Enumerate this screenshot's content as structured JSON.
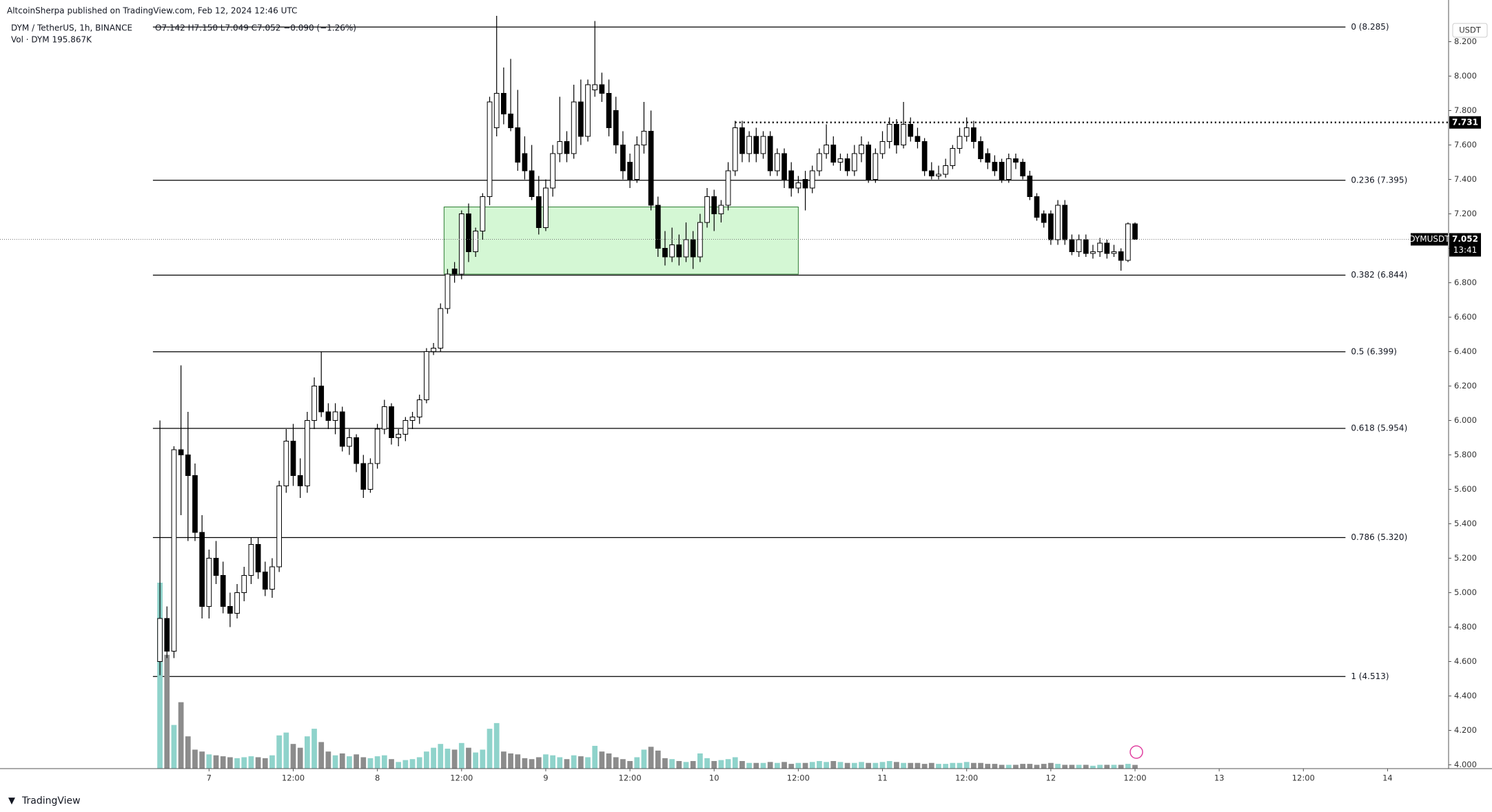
{
  "chart_data": {
    "type": "candlestick",
    "published": "AltcoinSherpa published on TradingView.com, Feb 12, 2024 12:46 UTC",
    "symbol": "DYM / TetherUS, 1h, BINANCE",
    "ohlc_text": "O7.142 H7.150 L7.049 C7.052 −0.090 (−1.26%)",
    "volume_text": "Vol · DYM  195.867K",
    "currency": "USDT",
    "ticker": "DYMUSDT",
    "countdown": "13:41",
    "footer": "TradingView",
    "up_color": "#ffffff",
    "down_color": "#000000",
    "up_volume_color": "#8fd3cb",
    "down_volume_color": "#8c8c8c",
    "zone_color": "#d4f7d4",
    "ylim": [
      3.978,
      8.442
    ],
    "xlim": [
      -22.8,
      183.7
    ],
    "yticks": [
      {
        "value": 4.0,
        "label": "4.000"
      },
      {
        "value": 4.2,
        "label": "4.200"
      },
      {
        "value": 4.4,
        "label": "4.400"
      },
      {
        "value": 4.6,
        "label": "4.600"
      },
      {
        "value": 4.8,
        "label": "4.800"
      },
      {
        "value": 5.0,
        "label": "5.000"
      },
      {
        "value": 5.2,
        "label": "5.200"
      },
      {
        "value": 5.4,
        "label": "5.400"
      },
      {
        "value": 5.6,
        "label": "5.600"
      },
      {
        "value": 5.8,
        "label": "5.800"
      },
      {
        "value": 6.0,
        "label": "6.000"
      },
      {
        "value": 6.2,
        "label": "6.200"
      },
      {
        "value": 6.4,
        "label": "6.400"
      },
      {
        "value": 6.6,
        "label": "6.600"
      },
      {
        "value": 6.8,
        "label": "6.800"
      },
      {
        "value": 7.0,
        "label": "7.000"
      },
      {
        "value": 7.2,
        "label": "7.200"
      },
      {
        "value": 7.4,
        "label": "7.400"
      },
      {
        "value": 7.6,
        "label": "7.600"
      },
      {
        "value": 7.8,
        "label": "7.800"
      },
      {
        "value": 8.0,
        "label": "8.000"
      },
      {
        "value": 8.2,
        "label": "8.200"
      }
    ],
    "xticks": [
      {
        "value": 7,
        "label": "7"
      },
      {
        "value": 19,
        "label": "12:00"
      },
      {
        "value": 31,
        "label": "8"
      },
      {
        "value": 43,
        "label": "12:00"
      },
      {
        "value": 55,
        "label": "9"
      },
      {
        "value": 67,
        "label": "12:00"
      },
      {
        "value": 79,
        "label": "10"
      },
      {
        "value": 91,
        "label": "12:00"
      },
      {
        "value": 103,
        "label": "11"
      },
      {
        "value": 115,
        "label": "12:00"
      },
      {
        "value": 127,
        "label": "12"
      },
      {
        "value": 139,
        "label": "12:00"
      },
      {
        "value": 151,
        "label": "13"
      },
      {
        "value": 163,
        "label": "12:00"
      },
      {
        "value": 175,
        "label": "14"
      }
    ],
    "fib_levels": [
      {
        "value": 8.285,
        "label": "0 (8.285)"
      },
      {
        "value": 7.395,
        "label": "0.236 (7.395)"
      },
      {
        "value": 6.844,
        "label": "0.382 (6.844)"
      },
      {
        "value": 6.399,
        "label": "0.5 (6.399)"
      },
      {
        "value": 5.954,
        "label": "0.618 (5.954)"
      },
      {
        "value": 5.32,
        "label": "0.786 (5.320)"
      },
      {
        "value": 4.513,
        "label": "1 (4.513)"
      }
    ],
    "resistance": 7.731,
    "zone": {
      "top": 7.24,
      "bottom": 6.85,
      "start": 40.5,
      "end": 91
    },
    "candles": [
      [
        4.6,
        6.0,
        4.52,
        4.85
      ],
      [
        4.85,
        4.92,
        4.62,
        4.66
      ],
      [
        4.66,
        5.85,
        4.62,
        5.83
      ],
      [
        5.83,
        6.32,
        5.45,
        5.8
      ],
      [
        5.8,
        6.05,
        5.3,
        5.68
      ],
      [
        5.68,
        5.75,
        5.3,
        5.35
      ],
      [
        5.35,
        5.45,
        4.85,
        4.92
      ],
      [
        4.92,
        5.25,
        4.85,
        5.2
      ],
      [
        5.2,
        5.3,
        5.05,
        5.1
      ],
      [
        5.1,
        5.18,
        4.88,
        4.92
      ],
      [
        4.92,
        5.0,
        4.8,
        4.88
      ],
      [
        4.88,
        5.05,
        4.85,
        5.0
      ],
      [
        5.0,
        5.15,
        4.95,
        5.1
      ],
      [
        5.1,
        5.32,
        5.05,
        5.28
      ],
      [
        5.28,
        5.32,
        5.08,
        5.12
      ],
      [
        5.12,
        5.18,
        4.98,
        5.02
      ],
      [
        5.02,
        5.2,
        4.97,
        5.15
      ],
      [
        5.15,
        5.65,
        5.12,
        5.62
      ],
      [
        5.62,
        5.95,
        5.58,
        5.88
      ],
      [
        5.88,
        5.98,
        5.62,
        5.68
      ],
      [
        5.68,
        5.78,
        5.55,
        5.62
      ],
      [
        5.62,
        6.05,
        5.58,
        6.0
      ],
      [
        6.0,
        6.25,
        5.95,
        6.2
      ],
      [
        6.2,
        6.4,
        6.02,
        6.05
      ],
      [
        6.05,
        6.1,
        5.95,
        6.0
      ],
      [
        6.0,
        6.1,
        5.92,
        6.05
      ],
      [
        6.05,
        6.08,
        5.82,
        5.85
      ],
      [
        5.85,
        5.95,
        5.8,
        5.9
      ],
      [
        5.9,
        5.92,
        5.7,
        5.75
      ],
      [
        5.75,
        5.8,
        5.55,
        5.6
      ],
      [
        5.6,
        5.78,
        5.58,
        5.75
      ],
      [
        5.75,
        5.98,
        5.72,
        5.95
      ],
      [
        5.95,
        6.12,
        5.92,
        6.08
      ],
      [
        6.08,
        6.1,
        5.86,
        5.9
      ],
      [
        5.9,
        5.95,
        5.85,
        5.92
      ],
      [
        5.92,
        6.02,
        5.88,
        6.0
      ],
      [
        6.0,
        6.05,
        5.95,
        6.02
      ],
      [
        6.02,
        6.15,
        5.98,
        6.12
      ],
      [
        6.12,
        6.42,
        6.1,
        6.4
      ],
      [
        6.4,
        6.45,
        6.38,
        6.42
      ],
      [
        6.42,
        6.68,
        6.4,
        6.65
      ],
      [
        6.65,
        6.88,
        6.62,
        6.85
      ],
      [
        6.88,
        6.92,
        6.8,
        6.85
      ],
      [
        6.85,
        7.22,
        6.82,
        7.2
      ],
      [
        7.2,
        7.26,
        6.92,
        6.98
      ],
      [
        6.98,
        7.12,
        6.95,
        7.1
      ],
      [
        7.1,
        7.32,
        7.05,
        7.3
      ],
      [
        7.3,
        7.88,
        7.25,
        7.85
      ],
      [
        7.7,
        8.35,
        7.65,
        7.9
      ],
      [
        7.9,
        8.05,
        7.72,
        7.78
      ],
      [
        7.78,
        8.1,
        7.68,
        7.7
      ],
      [
        7.7,
        7.92,
        7.45,
        7.5
      ],
      [
        7.55,
        7.65,
        7.4,
        7.45
      ],
      [
        7.45,
        7.6,
        7.28,
        7.3
      ],
      [
        7.3,
        7.42,
        7.08,
        7.12
      ],
      [
        7.12,
        7.4,
        7.1,
        7.35
      ],
      [
        7.35,
        7.6,
        7.3,
        7.55
      ],
      [
        7.55,
        7.88,
        7.5,
        7.62
      ],
      [
        7.62,
        7.68,
        7.5,
        7.55
      ],
      [
        7.55,
        7.95,
        7.52,
        7.85
      ],
      [
        7.85,
        7.98,
        7.6,
        7.65
      ],
      [
        7.65,
        7.98,
        7.62,
        7.95
      ],
      [
        7.92,
        8.32,
        7.88,
        7.95
      ],
      [
        7.95,
        8.02,
        7.85,
        7.9
      ],
      [
        7.9,
        7.98,
        7.65,
        7.7
      ],
      [
        7.8,
        7.88,
        7.55,
        7.6
      ],
      [
        7.6,
        7.68,
        7.4,
        7.45
      ],
      [
        7.5,
        7.55,
        7.35,
        7.4
      ],
      [
        7.4,
        7.65,
        7.38,
        7.6
      ],
      [
        7.6,
        7.85,
        7.55,
        7.68
      ],
      [
        7.68,
        7.8,
        7.22,
        7.25
      ],
      [
        7.25,
        7.3,
        6.95,
        7.0
      ],
      [
        7.0,
        7.1,
        6.9,
        6.95
      ],
      [
        6.95,
        7.12,
        6.92,
        7.02
      ],
      [
        7.02,
        7.08,
        6.9,
        6.95
      ],
      [
        6.95,
        7.15,
        6.92,
        7.05
      ],
      [
        7.05,
        7.1,
        6.88,
        6.95
      ],
      [
        6.95,
        7.2,
        6.92,
        7.15
      ],
      [
        7.15,
        7.35,
        7.12,
        7.3
      ],
      [
        7.3,
        7.34,
        7.1,
        7.2
      ],
      [
        7.2,
        7.28,
        7.15,
        7.25
      ],
      [
        7.25,
        7.5,
        7.22,
        7.45
      ],
      [
        7.45,
        7.74,
        7.42,
        7.7
      ],
      [
        7.7,
        7.74,
        7.5,
        7.55
      ],
      [
        7.55,
        7.68,
        7.5,
        7.65
      ],
      [
        7.65,
        7.7,
        7.5,
        7.55
      ],
      [
        7.55,
        7.68,
        7.52,
        7.65
      ],
      [
        7.65,
        7.68,
        7.42,
        7.45
      ],
      [
        7.45,
        7.58,
        7.42,
        7.55
      ],
      [
        7.55,
        7.58,
        7.35,
        7.4
      ],
      [
        7.45,
        7.5,
        7.3,
        7.35
      ],
      [
        7.35,
        7.42,
        7.32,
        7.38
      ],
      [
        7.4,
        7.45,
        7.22,
        7.35
      ],
      [
        7.35,
        7.48,
        7.32,
        7.45
      ],
      [
        7.45,
        7.58,
        7.42,
        7.55
      ],
      [
        7.55,
        7.72,
        7.52,
        7.6
      ],
      [
        7.6,
        7.65,
        7.48,
        7.5
      ],
      [
        7.5,
        7.55,
        7.45,
        7.52
      ],
      [
        7.52,
        7.55,
        7.42,
        7.45
      ],
      [
        7.45,
        7.6,
        7.42,
        7.55
      ],
      [
        7.55,
        7.65,
        7.5,
        7.6
      ],
      [
        7.6,
        7.62,
        7.38,
        7.4
      ],
      [
        7.4,
        7.58,
        7.38,
        7.55
      ],
      [
        7.55,
        7.68,
        7.52,
        7.62
      ],
      [
        7.62,
        7.76,
        7.58,
        7.72
      ],
      [
        7.72,
        7.75,
        7.55,
        7.6
      ],
      [
        7.6,
        7.85,
        7.58,
        7.72
      ],
      [
        7.72,
        7.76,
        7.62,
        7.65
      ],
      [
        7.65,
        7.7,
        7.58,
        7.62
      ],
      [
        7.62,
        7.64,
        7.42,
        7.45
      ],
      [
        7.45,
        7.5,
        7.4,
        7.42
      ],
      [
        7.42,
        7.48,
        7.4,
        7.43
      ],
      [
        7.43,
        7.52,
        7.41,
        7.48
      ],
      [
        7.48,
        7.6,
        7.46,
        7.58
      ],
      [
        7.58,
        7.7,
        7.55,
        7.65
      ],
      [
        7.65,
        7.76,
        7.62,
        7.7
      ],
      [
        7.7,
        7.74,
        7.58,
        7.62
      ],
      [
        7.62,
        7.65,
        7.5,
        7.52
      ],
      [
        7.55,
        7.58,
        7.46,
        7.5
      ],
      [
        7.5,
        7.54,
        7.42,
        7.45
      ],
      [
        7.5,
        7.52,
        7.38,
        7.4
      ],
      [
        7.4,
        7.55,
        7.38,
        7.52
      ],
      [
        7.52,
        7.55,
        7.46,
        7.5
      ],
      [
        7.5,
        7.52,
        7.4,
        7.42
      ],
      [
        7.42,
        7.45,
        7.28,
        7.3
      ],
      [
        7.3,
        7.32,
        7.16,
        7.18
      ],
      [
        7.2,
        7.22,
        7.12,
        7.15
      ],
      [
        7.2,
        7.22,
        7.02,
        7.05
      ],
      [
        7.05,
        7.28,
        7.02,
        7.25
      ],
      [
        7.25,
        7.28,
        7.02,
        7.05
      ],
      [
        7.05,
        7.08,
        6.96,
        6.98
      ],
      [
        6.98,
        7.08,
        6.95,
        7.05
      ],
      [
        7.05,
        7.08,
        6.95,
        6.97
      ],
      [
        6.97,
        7.02,
        6.94,
        6.98
      ],
      [
        6.98,
        7.06,
        6.95,
        7.03
      ],
      [
        7.03,
        7.05,
        6.94,
        6.97
      ],
      [
        6.97,
        7.02,
        6.95,
        6.98
      ],
      [
        6.98,
        7.0,
        6.87,
        6.93
      ],
      [
        6.93,
        7.15,
        6.92,
        7.142
      ],
      [
        7.142,
        7.15,
        7.049,
        7.052
      ]
    ],
    "volume": [
      9800,
      6000,
      2300,
      3500,
      1700,
      1000,
      900,
      750,
      700,
      650,
      600,
      550,
      600,
      650,
      600,
      550,
      700,
      1750,
      1900,
      1300,
      1100,
      1700,
      2100,
      1400,
      900,
      700,
      800,
      650,
      750,
      600,
      550,
      650,
      700,
      500,
      350,
      450,
      500,
      600,
      900,
      1100,
      1300,
      1050,
      1000,
      1350,
      1100,
      850,
      1000,
      2100,
      2400,
      900,
      800,
      750,
      550,
      500,
      600,
      750,
      700,
      600,
      500,
      700,
      650,
      600,
      1200,
      900,
      800,
      600,
      500,
      400,
      600,
      1000,
      1150,
      950,
      550,
      500,
      400,
      350,
      400,
      800,
      550,
      400,
      450,
      500,
      600,
      400,
      300,
      300,
      300,
      350,
      300,
      350,
      250,
      300,
      300,
      350,
      400,
      350,
      400,
      350,
      300,
      300,
      350,
      300,
      300,
      350,
      400,
      350,
      300,
      300,
      300,
      250,
      300,
      250,
      250,
      300,
      300,
      350,
      300,
      300,
      250,
      250,
      200,
      200,
      200,
      250,
      250,
      200,
      250,
      300,
      250,
      200,
      200,
      200,
      200,
      150,
      200,
      200,
      200,
      200,
      250,
      195.867
    ]
  }
}
